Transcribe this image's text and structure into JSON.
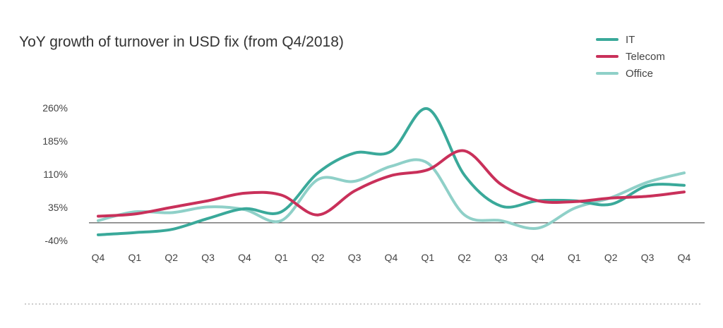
{
  "chart_data": {
    "type": "line",
    "title": "YoY growth of turnover in USD fix (from Q4/2018)",
    "categories": [
      "Q4",
      "Q1",
      "Q2",
      "Q3",
      "Q4",
      "Q1",
      "Q2",
      "Q3",
      "Q4",
      "Q1",
      "Q2",
      "Q3",
      "Q4",
      "Q1",
      "Q2",
      "Q3",
      "Q4"
    ],
    "y_ticks": [
      260,
      185,
      110,
      35,
      -40
    ],
    "y_tick_labels": [
      "260%",
      "185%",
      "110%",
      "35%",
      "-40%"
    ],
    "ylim": [
      -40,
      260
    ],
    "baseline": 0,
    "legend_position": "top-right",
    "grid": false,
    "series": [
      {
        "name": "IT",
        "color": "#3aa99a",
        "values": [
          -27,
          -22,
          -15,
          10,
          32,
          25,
          113,
          158,
          162,
          258,
          108,
          38,
          50,
          50,
          42,
          84,
          85
        ]
      },
      {
        "name": "Telecom",
        "color": "#c9305a",
        "values": [
          15,
          20,
          35,
          50,
          67,
          63,
          18,
          72,
          107,
          120,
          163,
          87,
          50,
          48,
          56,
          60,
          70
        ]
      },
      {
        "name": "Office",
        "color": "#8fd0c8",
        "values": [
          5,
          25,
          23,
          36,
          30,
          5,
          98,
          94,
          128,
          135,
          18,
          5,
          -12,
          33,
          57,
          92,
          113
        ]
      }
    ]
  }
}
